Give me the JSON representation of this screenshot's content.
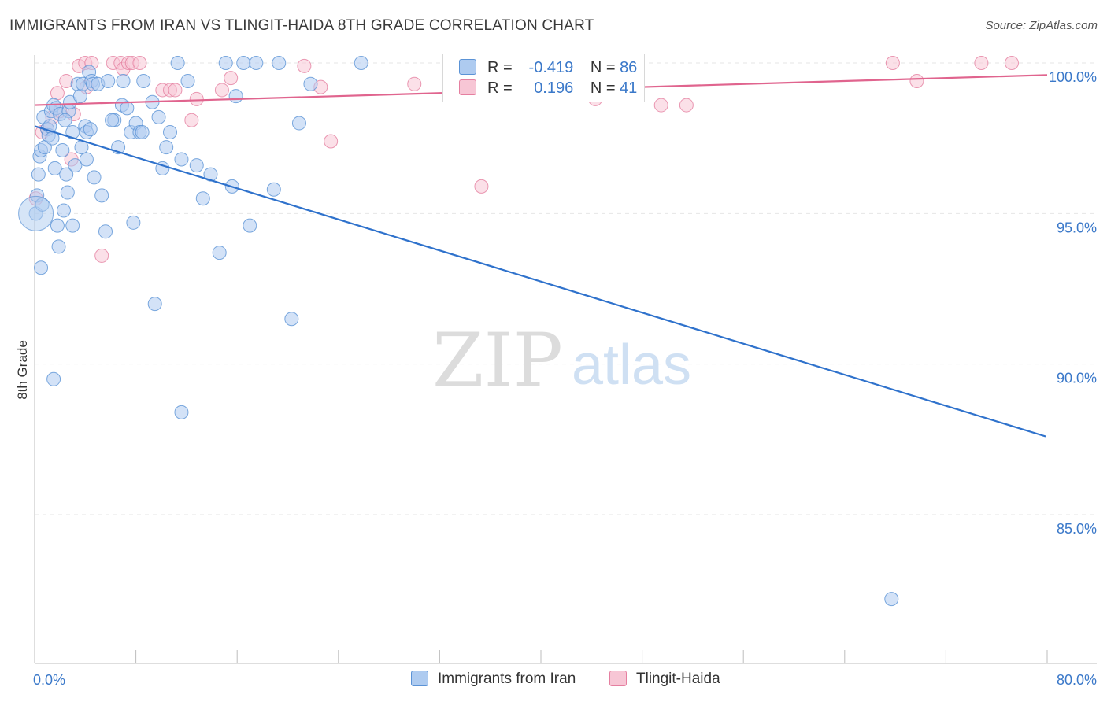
{
  "title": "IMMIGRANTS FROM IRAN VS TLINGIT-HAIDA 8TH GRADE CORRELATION CHART",
  "source": "Source: ZipAtlas.com",
  "watermark": {
    "zip": "ZIP",
    "atlas": "atlas"
  },
  "stats": {
    "iran": {
      "r_label": "R =",
      "r_value": "-0.419",
      "n_label": "N =",
      "n_value": "86"
    },
    "tlingit": {
      "r_label": "R =",
      "r_value": "0.196",
      "n_label": "N =",
      "n_value": "41"
    }
  },
  "legend": {
    "iran": "Immigrants from Iran",
    "tlingit": "Tlingit-Haida"
  },
  "colors": {
    "iran": "#5b93d6",
    "iran_fill": "#aecbf0",
    "iran_line": "#2f72cc",
    "tlingit": "#e57fa0",
    "tlingit_fill": "#f7c6d5",
    "tlingit_line": "#e0648e",
    "tick_text": "#3a78c9"
  },
  "chart_data": {
    "type": "scatter",
    "title": "IMMIGRANTS FROM IRAN VS TLINGIT-HAIDA 8TH GRADE CORRELATION CHART",
    "xlabel": "",
    "ylabel": "8th Grade",
    "xlim": [
      0,
      80
    ],
    "ylim": [
      80.5,
      100.8
    ],
    "x_tick_labels": [
      {
        "value": 0,
        "label": "0.0%"
      },
      {
        "value": 80,
        "label": "80.0%"
      }
    ],
    "y_tick_labels": [
      {
        "value": 100,
        "label": "100.0%"
      },
      {
        "value": 95,
        "label": "95.0%"
      },
      {
        "value": 90,
        "label": "90.0%"
      },
      {
        "value": 85,
        "label": "85.0%"
      }
    ],
    "grid": true,
    "series": [
      {
        "name": "Immigrants from Iran",
        "trend": {
          "x": [
            0,
            80
          ],
          "y": [
            97.9,
            87.6
          ]
        },
        "points": [
          [
            0.1,
            95.0
          ],
          [
            0.2,
            95.6
          ],
          [
            0.3,
            96.3
          ],
          [
            0.4,
            96.9
          ],
          [
            0.5,
            97.1
          ],
          [
            0.6,
            95.3
          ],
          [
            0.7,
            98.2
          ],
          [
            0.8,
            97.2
          ],
          [
            1.0,
            97.8
          ],
          [
            1.1,
            97.6
          ],
          [
            1.2,
            97.9
          ],
          [
            1.3,
            98.4
          ],
          [
            1.4,
            97.5
          ],
          [
            1.5,
            98.6
          ],
          [
            1.6,
            96.5
          ],
          [
            1.7,
            98.5
          ],
          [
            1.8,
            94.6
          ],
          [
            1.9,
            93.9
          ],
          [
            2.0,
            98.3
          ],
          [
            2.2,
            97.1
          ],
          [
            2.3,
            95.1
          ],
          [
            2.5,
            96.3
          ],
          [
            2.6,
            95.7
          ],
          [
            2.7,
            98.4
          ],
          [
            2.8,
            98.7
          ],
          [
            3.0,
            97.7
          ],
          [
            3.2,
            96.6
          ],
          [
            3.4,
            99.3
          ],
          [
            3.6,
            98.9
          ],
          [
            3.7,
            97.2
          ],
          [
            3.8,
            99.3
          ],
          [
            4.0,
            97.9
          ],
          [
            4.1,
            97.7
          ],
          [
            4.3,
            99.7
          ],
          [
            4.4,
            97.8
          ],
          [
            4.5,
            99.4
          ],
          [
            4.6,
            99.3
          ],
          [
            4.7,
            96.2
          ],
          [
            5.0,
            99.3
          ],
          [
            6.3,
            98.1
          ],
          [
            6.6,
            97.2
          ],
          [
            6.9,
            98.6
          ],
          [
            7.3,
            98.5
          ],
          [
            7.6,
            97.7
          ],
          [
            8.0,
            98.0
          ],
          [
            8.3,
            97.7
          ],
          [
            8.6,
            99.4
          ],
          [
            7.0,
            99.4
          ],
          [
            9.3,
            98.7
          ],
          [
            9.8,
            98.2
          ],
          [
            10.1,
            96.5
          ],
          [
            10.4,
            97.2
          ],
          [
            10.7,
            97.7
          ],
          [
            11.3,
            100.0
          ],
          [
            11.6,
            96.8
          ],
          [
            12.1,
            99.4
          ],
          [
            12.8,
            96.6
          ],
          [
            13.3,
            95.5
          ],
          [
            13.9,
            96.3
          ],
          [
            14.6,
            93.7
          ],
          [
            15.1,
            100.0
          ],
          [
            15.6,
            95.9
          ],
          [
            15.9,
            98.9
          ],
          [
            16.5,
            100.0
          ],
          [
            17.0,
            94.6
          ],
          [
            17.5,
            100.0
          ],
          [
            18.9,
            95.8
          ],
          [
            19.3,
            100.0
          ],
          [
            20.3,
            91.5
          ],
          [
            20.9,
            98.0
          ],
          [
            21.8,
            99.3
          ],
          [
            25.8,
            100.0
          ],
          [
            7.8,
            94.7
          ],
          [
            9.5,
            92.0
          ],
          [
            11.6,
            88.4
          ],
          [
            5.6,
            94.4
          ],
          [
            3.0,
            94.6
          ],
          [
            0.5,
            93.2
          ],
          [
            1.5,
            89.5
          ],
          [
            4.1,
            96.8
          ],
          [
            5.3,
            95.6
          ],
          [
            6.1,
            98.1
          ],
          [
            2.4,
            98.1
          ],
          [
            8.5,
            97.7
          ],
          [
            5.8,
            99.4
          ],
          [
            67.7,
            82.2
          ]
        ]
      },
      {
        "name": "Tlingit-Haida",
        "trend": {
          "x": [
            0,
            80
          ],
          "y": [
            98.6,
            99.6
          ]
        },
        "points": [
          [
            0.1,
            95.5
          ],
          [
            0.6,
            97.7
          ],
          [
            1.0,
            97.8
          ],
          [
            1.4,
            98.2
          ],
          [
            1.8,
            99.0
          ],
          [
            2.0,
            98.4
          ],
          [
            2.5,
            99.4
          ],
          [
            2.9,
            96.8
          ],
          [
            3.1,
            98.3
          ],
          [
            3.5,
            99.9
          ],
          [
            4.0,
            100.0
          ],
          [
            4.1,
            99.2
          ],
          [
            4.5,
            100.0
          ],
          [
            5.3,
            93.6
          ],
          [
            6.2,
            100.0
          ],
          [
            6.8,
            100.0
          ],
          [
            7.0,
            99.8
          ],
          [
            7.4,
            100.0
          ],
          [
            7.7,
            100.0
          ],
          [
            8.3,
            100.0
          ],
          [
            10.1,
            99.1
          ],
          [
            10.7,
            99.1
          ],
          [
            11.1,
            99.1
          ],
          [
            12.4,
            98.1
          ],
          [
            12.8,
            98.8
          ],
          [
            14.8,
            99.1
          ],
          [
            15.5,
            99.5
          ],
          [
            21.3,
            99.9
          ],
          [
            22.6,
            99.2
          ],
          [
            23.4,
            97.4
          ],
          [
            30.0,
            99.3
          ],
          [
            35.3,
            95.9
          ],
          [
            38.0,
            100.0
          ],
          [
            40.0,
            99.0
          ],
          [
            44.3,
            98.8
          ],
          [
            49.5,
            98.6
          ],
          [
            51.5,
            98.6
          ],
          [
            67.8,
            100.0
          ],
          [
            69.7,
            99.4
          ],
          [
            74.8,
            100.0
          ],
          [
            77.2,
            100.0
          ]
        ]
      }
    ]
  }
}
